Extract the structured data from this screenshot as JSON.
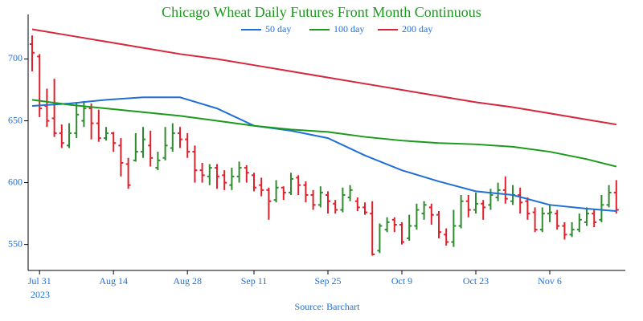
{
  "chart_data": {
    "type": "ohlc",
    "title": "Chicago Wheat Daily Futures Front Month Continuous",
    "source": "Source: Barchart",
    "x_year": "2023",
    "up_color": "#2e8b2e",
    "down_color": "#e0202a",
    "ylim": [
      529,
      736
    ],
    "yticks": [
      550,
      600,
      650,
      700
    ],
    "xticks": [
      {
        "value": "2023-07-31",
        "label": "Jul 31"
      },
      {
        "value": "2023-08-14",
        "label": "Aug 14"
      },
      {
        "value": "2023-08-28",
        "label": "Aug 28"
      },
      {
        "value": "2023-09-11",
        "label": "Sep 11"
      },
      {
        "value": "2023-09-25",
        "label": "Sep 25"
      },
      {
        "value": "2023-10-09",
        "label": "Oct 9"
      },
      {
        "value": "2023-10-23",
        "label": "Oct 23"
      },
      {
        "value": "2023-11-06",
        "label": "Nov 6"
      }
    ],
    "x": [
      "2023-07-28",
      "2023-07-31",
      "2023-08-01",
      "2023-08-02",
      "2023-08-03",
      "2023-08-04",
      "2023-08-07",
      "2023-08-08",
      "2023-08-09",
      "2023-08-10",
      "2023-08-11",
      "2023-08-14",
      "2023-08-15",
      "2023-08-16",
      "2023-08-17",
      "2023-08-18",
      "2023-08-21",
      "2023-08-22",
      "2023-08-23",
      "2023-08-24",
      "2023-08-25",
      "2023-08-28",
      "2023-08-29",
      "2023-08-30",
      "2023-08-31",
      "2023-09-01",
      "2023-09-05",
      "2023-09-06",
      "2023-09-07",
      "2023-09-08",
      "2023-09-11",
      "2023-09-12",
      "2023-09-13",
      "2023-09-14",
      "2023-09-15",
      "2023-09-18",
      "2023-09-19",
      "2023-09-20",
      "2023-09-21",
      "2023-09-22",
      "2023-09-25",
      "2023-09-26",
      "2023-09-27",
      "2023-09-28",
      "2023-09-29",
      "2023-10-02",
      "2023-10-03",
      "2023-10-04",
      "2023-10-05",
      "2023-10-06",
      "2023-10-09",
      "2023-10-10",
      "2023-10-11",
      "2023-10-12",
      "2023-10-13",
      "2023-10-16",
      "2023-10-17",
      "2023-10-18",
      "2023-10-19",
      "2023-10-20",
      "2023-10-23",
      "2023-10-24",
      "2023-10-25",
      "2023-10-26",
      "2023-10-27",
      "2023-10-30",
      "2023-10-31",
      "2023-11-01",
      "2023-11-02",
      "2023-11-03",
      "2023-11-06",
      "2023-11-07",
      "2023-11-08",
      "2023-11-09",
      "2023-11-10",
      "2023-11-13",
      "2023-11-14",
      "2023-11-15",
      "2023-11-16",
      "2023-11-17"
    ],
    "open": [
      712,
      702,
      662,
      652,
      640,
      630,
      640,
      650,
      660,
      648,
      636,
      640,
      630,
      615,
      618,
      625,
      630,
      612,
      620,
      628,
      640,
      635,
      625,
      610,
      605,
      612,
      606,
      598,
      605,
      612,
      606,
      598,
      594,
      586,
      596,
      592,
      604,
      598,
      590,
      582,
      590,
      583,
      578,
      588,
      585,
      580,
      575,
      545,
      562,
      570,
      566,
      555,
      565,
      575,
      580,
      574,
      558,
      552,
      565,
      585,
      578,
      583,
      582,
      588,
      594,
      585,
      590,
      585,
      576,
      562,
      575,
      575,
      565,
      558,
      562,
      568,
      575,
      570,
      582,
      592
    ],
    "high": [
      719,
      704,
      676,
      684,
      647,
      648,
      665,
      666,
      664,
      659,
      645,
      641,
      636,
      620,
      640,
      645,
      642,
      625,
      645,
      648,
      645,
      640,
      630,
      616,
      615,
      615,
      610,
      612,
      617,
      614,
      608,
      604,
      596,
      602,
      597,
      608,
      606,
      601,
      594,
      597,
      593,
      586,
      596,
      598,
      588,
      584,
      585,
      567,
      572,
      572,
      568,
      574,
      583,
      585,
      583,
      577,
      563,
      578,
      590,
      590,
      592,
      586,
      595,
      600,
      605,
      598,
      596,
      588,
      580,
      580,
      582,
      578,
      568,
      568,
      575,
      580,
      578,
      590,
      598,
      602
    ],
    "low": [
      690,
      653,
      645,
      637,
      628,
      628,
      636,
      645,
      635,
      633,
      634,
      625,
      605,
      595,
      617,
      620,
      613,
      610,
      618,
      625,
      628,
      620,
      600,
      600,
      598,
      595,
      594,
      594,
      600,
      600,
      593,
      589,
      570,
      584,
      586,
      590,
      590,
      584,
      578,
      580,
      575,
      575,
      576,
      585,
      577,
      574,
      541,
      543,
      560,
      560,
      550,
      553,
      562,
      570,
      566,
      555,
      549,
      548,
      563,
      572,
      575,
      570,
      578,
      585,
      583,
      582,
      575,
      570,
      560,
      560,
      568,
      562,
      554,
      556,
      560,
      565,
      564,
      568,
      580,
      575
    ],
    "close": [
      705,
      660,
      650,
      640,
      632,
      640,
      655,
      660,
      648,
      636,
      640,
      632,
      616,
      598,
      625,
      635,
      620,
      618,
      630,
      640,
      635,
      625,
      610,
      606,
      612,
      605,
      600,
      605,
      612,
      608,
      596,
      594,
      585,
      596,
      592,
      603,
      598,
      590,
      582,
      592,
      585,
      578,
      590,
      594,
      580,
      576,
      542,
      565,
      568,
      566,
      552,
      565,
      578,
      582,
      574,
      560,
      552,
      565,
      585,
      578,
      583,
      580,
      590,
      594,
      587,
      590,
      584,
      575,
      562,
      575,
      576,
      565,
      558,
      562,
      570,
      575,
      568,
      582,
      592,
      578
    ],
    "series": [
      {
        "name": "50 day",
        "color": "#1f6fd8",
        "x": [
          "2023-07-28",
          "2023-08-04",
          "2023-08-11",
          "2023-08-18",
          "2023-08-25",
          "2023-09-01",
          "2023-09-11",
          "2023-09-18",
          "2023-09-25",
          "2023-10-02",
          "2023-10-09",
          "2023-10-16",
          "2023-10-23",
          "2023-10-30",
          "2023-11-06",
          "2023-11-13",
          "2023-11-17"
        ],
        "values": [
          662,
          664,
          667,
          669,
          669,
          660,
          646,
          642,
          636,
          622,
          610,
          601,
          593,
          590,
          582,
          579,
          577
        ]
      },
      {
        "name": "100 day",
        "color": "#1a9a1a",
        "x": [
          "2023-07-28",
          "2023-08-04",
          "2023-08-11",
          "2023-08-18",
          "2023-08-25",
          "2023-09-01",
          "2023-09-11",
          "2023-09-18",
          "2023-09-25",
          "2023-10-02",
          "2023-10-09",
          "2023-10-16",
          "2023-10-23",
          "2023-10-30",
          "2023-11-06",
          "2023-11-13",
          "2023-11-17"
        ],
        "values": [
          667,
          663,
          660,
          657,
          654,
          650,
          646,
          643,
          641,
          637,
          634,
          632,
          631,
          629,
          625,
          619,
          613
        ]
      },
      {
        "name": "200 day",
        "color": "#d6263b",
        "x": [
          "2023-07-28",
          "2023-08-04",
          "2023-08-11",
          "2023-08-18",
          "2023-08-25",
          "2023-09-01",
          "2023-09-11",
          "2023-09-18",
          "2023-09-25",
          "2023-10-02",
          "2023-10-09",
          "2023-10-16",
          "2023-10-23",
          "2023-10-30",
          "2023-11-06",
          "2023-11-13",
          "2023-11-17"
        ],
        "values": [
          724,
          719,
          714,
          709,
          704,
          700,
          695,
          690,
          685,
          680,
          675,
          670,
          665,
          661,
          656,
          651,
          647
        ]
      }
    ]
  }
}
